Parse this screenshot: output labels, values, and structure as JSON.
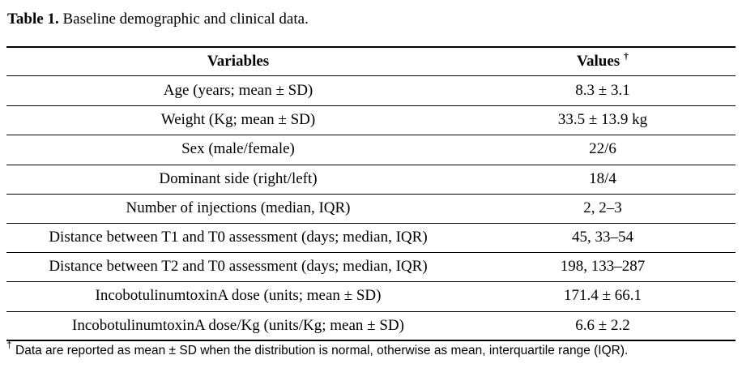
{
  "caption": {
    "label": "Table 1.",
    "text": "Baseline demographic and clinical data."
  },
  "table": {
    "headers": {
      "variables": "Variables",
      "values": "Values",
      "values_mark": "†"
    },
    "rows": [
      {
        "variable": "Age (years; mean ± SD)",
        "value": "8.3 ± 3.1"
      },
      {
        "variable": "Weight (Kg; mean ± SD)",
        "value": "33.5 ± 13.9 kg"
      },
      {
        "variable": "Sex (male/female)",
        "value": "22/6"
      },
      {
        "variable": "Dominant side (right/left)",
        "value": "18/4"
      },
      {
        "variable": "Number of injections (median, IQR)",
        "value": "2, 2–3"
      },
      {
        "variable": "Distance between T1 and T0 assessment (days; median, IQR)",
        "value": "45, 33–54"
      },
      {
        "variable": "Distance between T2 and T0 assessment (days; median, IQR)",
        "value": "198, 133–287"
      },
      {
        "variable": "IncobotulinumtoxinA dose (units; mean ± SD)",
        "value": "171.4 ± 66.1"
      },
      {
        "variable": "IncobotulinumtoxinA dose/Kg (units/Kg; mean ± SD)",
        "value": "6.6 ± 2.2"
      }
    ]
  },
  "footnote": {
    "mark": "†",
    "text": "Data are reported as mean ± SD when the distribution is normal, otherwise as mean, interquartile range (IQR)."
  }
}
